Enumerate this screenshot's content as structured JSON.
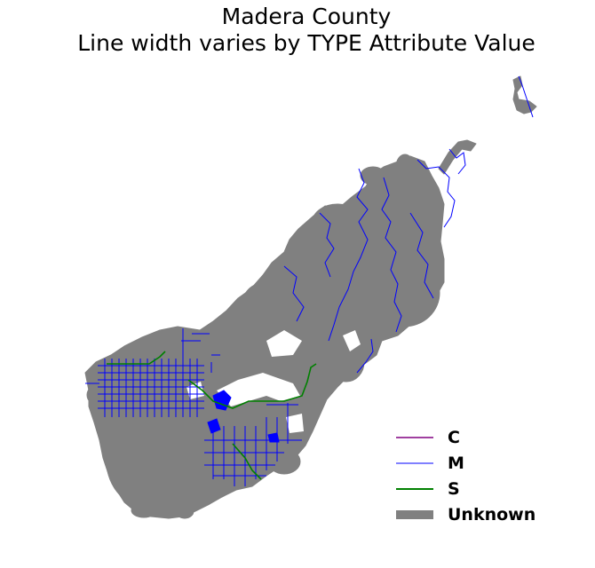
{
  "title": {
    "line1": "Madera County",
    "line2": "Line width varies by TYPE Attribute Value"
  },
  "legend": [
    {
      "label": "C",
      "color": "#800080"
    },
    {
      "label": "M",
      "color": "#0000ff"
    },
    {
      "label": "S",
      "color": "#008000"
    },
    {
      "label": "Unknown",
      "color": "#808080"
    }
  ]
}
